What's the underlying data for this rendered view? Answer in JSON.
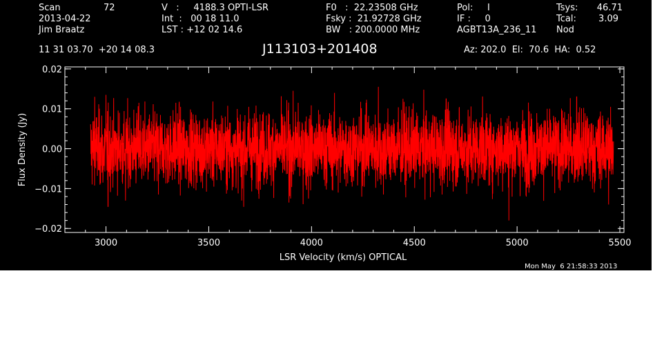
{
  "header": {
    "scan_label": "Scan",
    "scan_value": "72",
    "date": "2013-04-22",
    "observer": "Jim Braatz",
    "v_line": "V   :     4188.3 OPTI-LSR",
    "int_line": "Int  :   00 18 11.0",
    "lst_line": "LST : +12 02 14.6",
    "f0_line": "F0   :  22.23508 GHz",
    "fsky_line": "Fsky :  21.92728 GHz",
    "bw_line": "BW   : 200.0000 MHz",
    "pol_line": "Pol:     I",
    "if_line": "IF :     0",
    "project": "AGBT13A_236_11",
    "tsys_label": "Tsys:",
    "tsys_value": "46.71",
    "tcal_label": "Tcal:",
    "tcal_value": "3.09",
    "mode": "Nod",
    "coords": "11 31 03.70  +20 14 08.3",
    "source": "J113103+201408",
    "pointing": "Az: 202.0  El:  70.6  HA:  0.52"
  },
  "footer": {
    "timestamp": "Mon May  6 21:58:33 2013"
  },
  "colors": {
    "background": "#000000",
    "axes": "#ffffff",
    "trace": "#ff0000"
  },
  "chart_data": {
    "type": "line",
    "xlabel": "LSR Velocity (km/s) OPTICAL",
    "ylabel": "Flux Density (Jy)",
    "xlim": [
      2800,
      5520
    ],
    "ylim": [
      -0.021,
      0.0205
    ],
    "xticks": [
      3000,
      3500,
      4000,
      4500,
      5000,
      5500
    ],
    "xtick_labels": [
      "3000",
      "3500",
      "4000",
      "4500",
      "5000",
      "5500"
    ],
    "yticks": [
      -0.02,
      -0.01,
      0.0,
      0.01,
      0.02
    ],
    "ytick_labels": [
      "−0.02",
      "−0.01",
      "0.00",
      "0.01",
      "0.02"
    ],
    "grid": false,
    "series": [
      {
        "x_start": 2925,
        "x_end": 5470,
        "n_channels": 3400,
        "mean": 0.0,
        "rms": 0.0046,
        "peaks": [
          {
            "x": 2945,
            "y": 0.013
          },
          {
            "x": 2985,
            "y": -0.0085
          },
          {
            "x": 3000,
            "y": 0.0135
          },
          {
            "x": 3010,
            "y": -0.0145
          },
          {
            "x": 3095,
            "y": -0.013
          },
          {
            "x": 3160,
            "y": 0.0115
          },
          {
            "x": 3255,
            "y": -0.0115
          },
          {
            "x": 3340,
            "y": 0.0115
          },
          {
            "x": 3660,
            "y": -0.013
          },
          {
            "x": 3695,
            "y": 0.0105
          },
          {
            "x": 3890,
            "y": -0.0135
          },
          {
            "x": 3935,
            "y": 0.0115
          },
          {
            "x": 3985,
            "y": -0.0125
          },
          {
            "x": 4130,
            "y": -0.011
          },
          {
            "x": 4265,
            "y": 0.0115
          },
          {
            "x": 4325,
            "y": 0.0155
          },
          {
            "x": 4350,
            "y": -0.0115
          },
          {
            "x": 4445,
            "y": 0.0125
          },
          {
            "x": 4635,
            "y": -0.0115
          },
          {
            "x": 4655,
            "y": 0.0125
          },
          {
            "x": 4960,
            "y": -0.018
          },
          {
            "x": 5045,
            "y": -0.012
          },
          {
            "x": 5290,
            "y": 0.013
          },
          {
            "x": 5445,
            "y": -0.014
          },
          {
            "x": 5455,
            "y": 0.0105
          }
        ]
      }
    ]
  }
}
